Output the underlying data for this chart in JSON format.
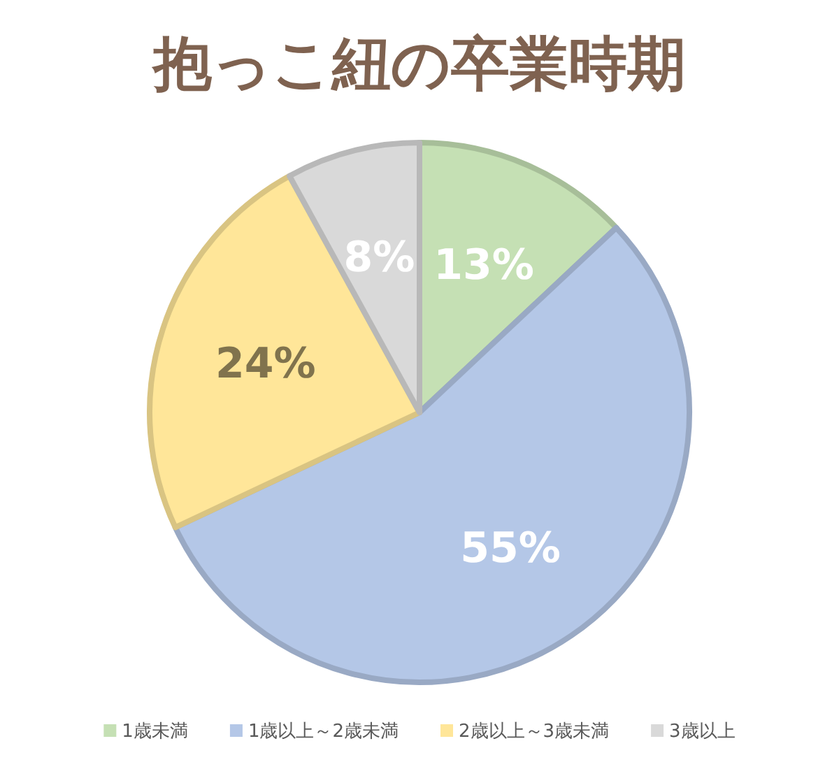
{
  "chart_data": {
    "type": "pie",
    "title": "抱っこ紐の卒業時期",
    "categories": [
      "1歳未満",
      "1歳以上～2歳未満",
      "2歳以上～3歳未満",
      "3歳以上"
    ],
    "values": [
      13,
      55,
      24,
      8
    ],
    "value_labels": [
      "13%",
      "55%",
      "24%",
      "8%"
    ],
    "colors": [
      "#c5e0b4",
      "#b4c7e7",
      "#ffe699",
      "#d9d9d9"
    ],
    "legend": "bottom"
  }
}
